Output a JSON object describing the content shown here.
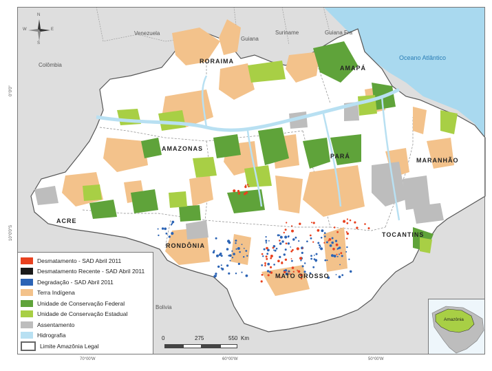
{
  "colors": {
    "ocean": "#a9d9ef",
    "land_outside": "#dedede",
    "legal_amazon": "#ffffff",
    "terra_indigena": "#f3c28b",
    "uc_federal": "#5fa33a",
    "uc_estadual": "#a8cf45",
    "assentamento": "#bdbdbd",
    "hidrografia": "#b8e0f2",
    "desmatamento": "#e8411f",
    "desmatamento_recente": "#1a1a1a",
    "degradacao": "#2c64b5"
  },
  "countries": {
    "venezuela": "Venezuela",
    "guiana": "Guiana",
    "suriname": "Suriname",
    "guiana_fra": "Guiana Fra",
    "colombia": "Colômbia",
    "bolivia": "Bolivia"
  },
  "ocean_label": "Oceano Atlântico",
  "states": {
    "roraima": "RORAIMA",
    "amapa": "AMAPÁ",
    "amazonas": "AMAZONAS",
    "para": "PARÁ",
    "maranhao": "MARANHÃO",
    "acre": "ACRE",
    "rondonia": "RONDÔNIA",
    "tocantins": "TOCANTINS",
    "mato_grosso": "MATO GROSSO"
  },
  "coords": {
    "lon_70": "70°00'W",
    "lon_60": "60°00'W",
    "lon_50": "50°00'W",
    "lat_0": "0°0'0\"",
    "lat_10": "10°0'0\"S"
  },
  "compass": {
    "n": "N",
    "s": "S",
    "e": "E",
    "w": "W"
  },
  "legend": {
    "items": [
      {
        "label": "Desmatamento - SAD Abril 2011",
        "color": "#e8411f"
      },
      {
        "label": "Desmatamento Recente - SAD Abril 2011",
        "color": "#1a1a1a"
      },
      {
        "label": "Degradação - SAD Abril 2011",
        "color": "#2c64b5"
      },
      {
        "label": "Terra Indígena",
        "color": "#f3c28b"
      },
      {
        "label": "Unidade de Conservação Federal",
        "color": "#5fa33a"
      },
      {
        "label": "Unidade de Conservação Estadual",
        "color": "#a8cf45"
      },
      {
        "label": "Assentamento",
        "color": "#bdbdbd"
      },
      {
        "label": "Hidrografia",
        "color": "#b8e0f2"
      },
      {
        "label": "Limite Amazônia Legal",
        "color": "#ffffff"
      }
    ]
  },
  "scale": {
    "l0": "0",
    "l1": "275",
    "l2": "550",
    "unit": "Km"
  },
  "inset": {
    "label": "Amazônia"
  }
}
